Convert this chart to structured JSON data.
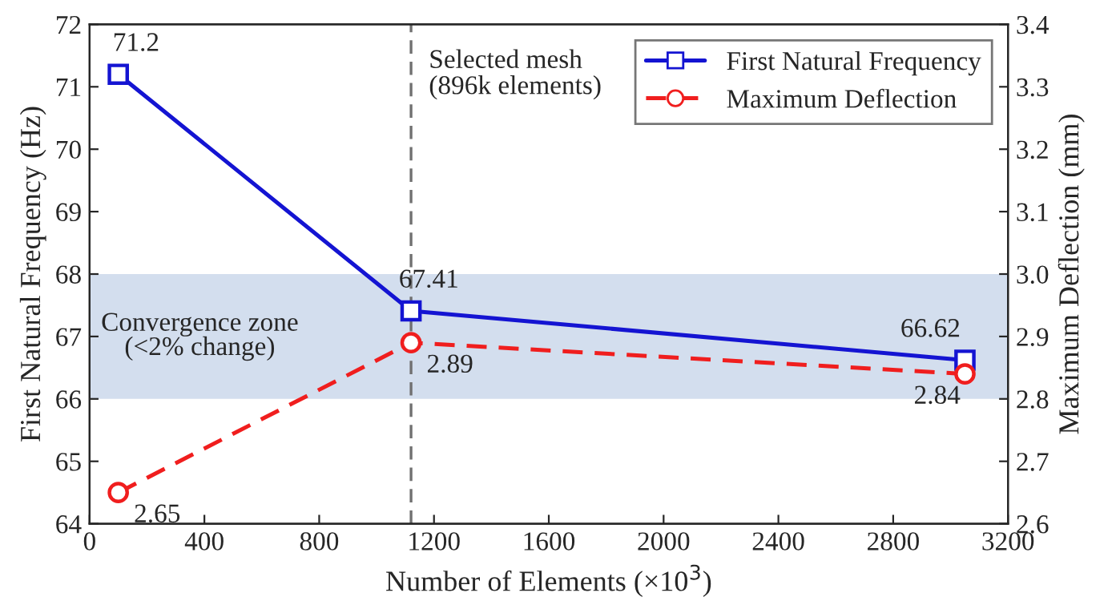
{
  "chart_data": {
    "type": "line",
    "xlabel": "Number of Elements (×10$^{3}$)",
    "ylabel": "First Natural Frequency (Hz)",
    "y2label": "Maximum Deflection (mm)",
    "x": [
      100,
      1120,
      3050
    ],
    "series": [
      {
        "name": "First Natural Frequency",
        "color": "#1414d2",
        "values": [
          71.2,
          67.41,
          66.62
        ],
        "marker": "square",
        "line_style": "solid"
      },
      {
        "name": "Maximum Deflection",
        "color": "#f01e1e",
        "values": [
          2.65,
          2.89,
          2.84
        ],
        "marker": "circle",
        "line_style": "dashed",
        "axis": "y2"
      }
    ],
    "xlim": [
      0,
      3200
    ],
    "xticks": [
      0,
      400,
      800,
      1200,
      1600,
      2000,
      2400,
      2800,
      3200
    ],
    "ylim": [
      64,
      72
    ],
    "yticks": [
      64,
      65,
      66,
      67,
      68,
      69,
      70,
      71,
      72
    ],
    "y2lim": [
      2.6,
      3.4
    ],
    "y2ticks": [
      {
        "value": 2.6,
        "label": "2.6"
      },
      {
        "value": 2.7,
        "label": "2.7"
      },
      {
        "value": 2.8,
        "label": "2.8"
      },
      {
        "value": 2.9,
        "label": "2.9"
      },
      {
        "value": 3.0,
        "label": "3.0"
      },
      {
        "value": 3.1,
        "label": "3.1"
      },
      {
        "value": 3.2,
        "label": "3.2"
      },
      {
        "value": 3.3,
        "label": "3.3"
      },
      {
        "value": 3.4,
        "label": "3.4"
      }
    ],
    "ref_lines": [
      {
        "axis": "x",
        "value": 1120,
        "label": "Selected mesh\n(896k elements)",
        "color": "#707070",
        "line_style": "dashed"
      }
    ],
    "bands": [
      {
        "axis": "y",
        "from": 66,
        "to": 68,
        "label": "Convergence zone\n(<2% change)",
        "color": "#d3deee"
      }
    ],
    "data_labels": true,
    "legend": "top right",
    "grid": false
  }
}
